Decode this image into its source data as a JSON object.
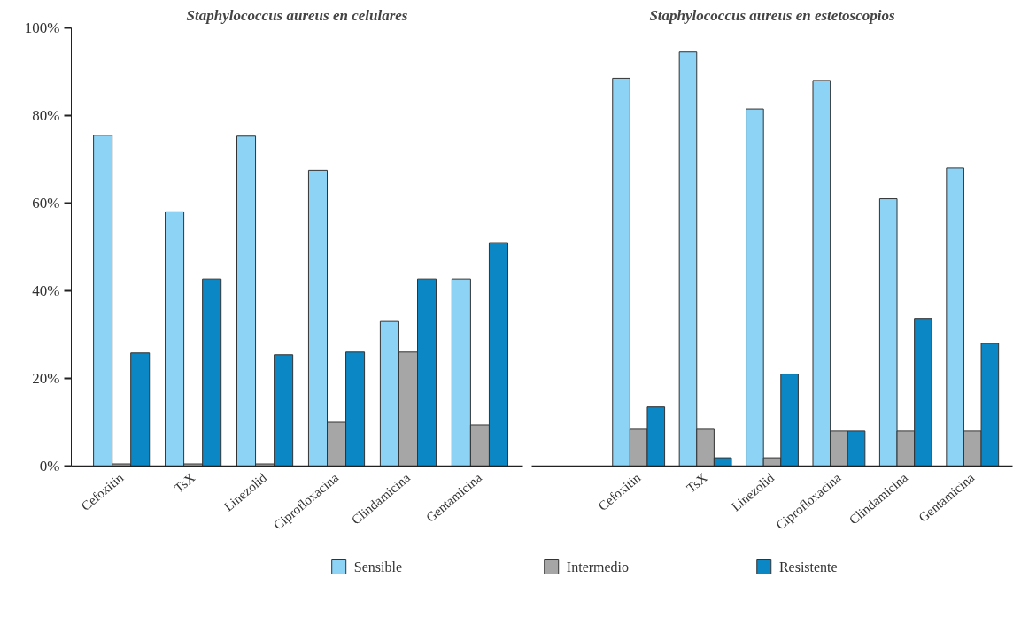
{
  "chart_data": [
    {
      "type": "bar",
      "title": "Staphylococcus aureus en celulares",
      "categories": [
        "Cefoxitin",
        "TsX",
        "Linezolid",
        "Ciprofloxacina",
        "Clindamicina",
        "Gentamicina"
      ],
      "series": [
        {
          "name": "Sensible",
          "color": "#8dd3f5",
          "values": [
            75.5,
            58,
            75.3,
            67.5,
            33,
            42.7
          ]
        },
        {
          "name": "Intermedio",
          "color": "#a6a6a6",
          "values": [
            0.5,
            0.5,
            0.5,
            10,
            26,
            9.4
          ]
        },
        {
          "name": "Resistente",
          "color": "#0a87c4",
          "values": [
            25.8,
            42.7,
            25.4,
            26,
            42.7,
            51
          ]
        }
      ],
      "ylim": [
        0,
        100
      ],
      "yticks": [
        {
          "value": 0,
          "label": "0%"
        },
        {
          "value": 20,
          "label": "20%"
        },
        {
          "value": 40,
          "label": "40%"
        },
        {
          "value": 60,
          "label": "60%"
        },
        {
          "value": 80,
          "label": "80%"
        },
        {
          "value": 100,
          "label": "100%"
        }
      ],
      "legend": "bottom"
    },
    {
      "type": "bar",
      "title": "Staphylococcus aureus en estetoscopios",
      "categories": [
        "Cefoxitin",
        "TsX",
        "Linezolid",
        "Ciprofloxacina",
        "Clindamicina",
        "Gentamicina"
      ],
      "series": [
        {
          "color": "#8dd3f5",
          "values": [
            88.5,
            94.5,
            81.5,
            88,
            61,
            68
          ]
        },
        {
          "color": "#a6a6a6",
          "values": [
            8.4,
            8.4,
            1.9,
            8,
            8,
            8
          ]
        },
        {
          "color": "#0a87c4",
          "values": [
            13.5,
            1.9,
            21,
            8,
            33.7,
            28
          ]
        }
      ],
      "ylim": [
        0,
        100
      ],
      "tick_labels": "x"
    }
  ]
}
